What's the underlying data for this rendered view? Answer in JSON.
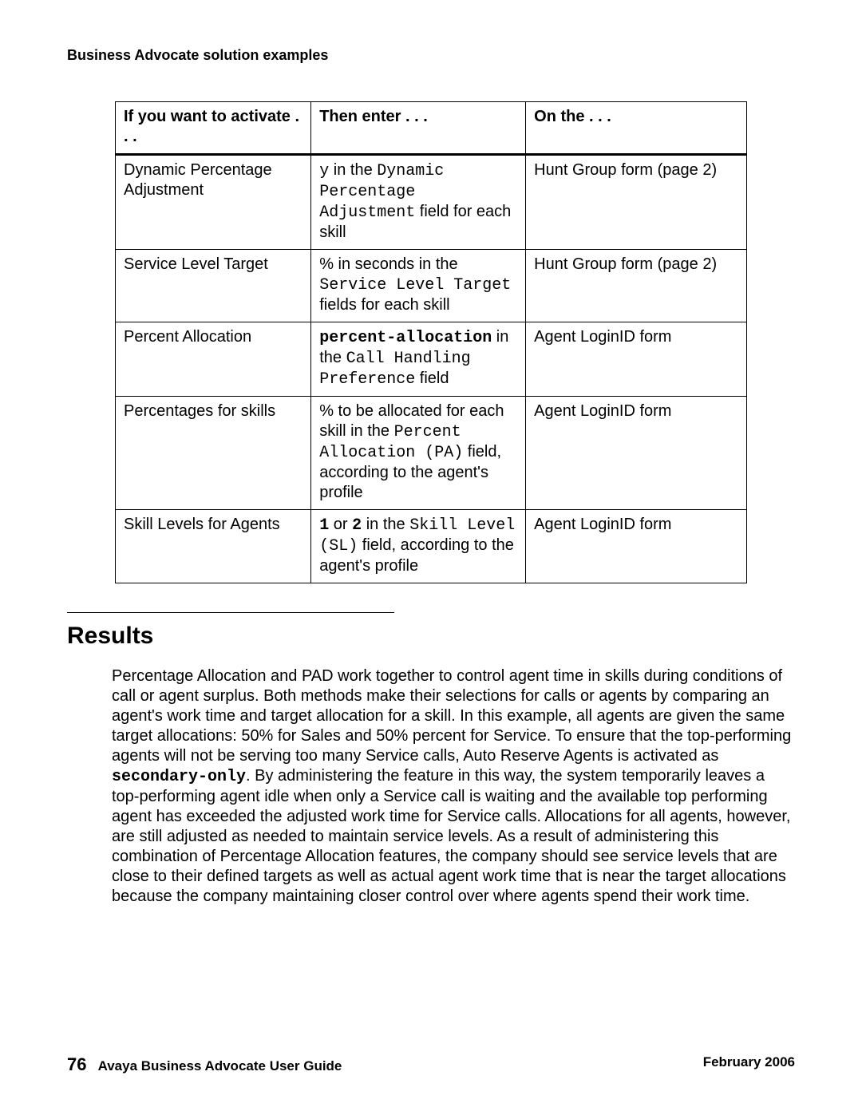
{
  "runningHeader": "Business Advocate solution examples",
  "table": {
    "headers": {
      "col1": "If you want to activate . . .",
      "col2": "Then enter . . .",
      "col3": "On the . . ."
    },
    "rows": {
      "r1": {
        "activate": "Dynamic Percentage Adjustment",
        "enter_pre_code": "",
        "enter_code1": "y",
        "enter_mid1": " in the ",
        "enter_code2": "Dynamic Percentage Adjustment",
        "enter_post": " field for each skill",
        "on": "Hunt Group form (page 2)"
      },
      "r2": {
        "activate": "Service Level Target",
        "enter_pre_code": "% in seconds in the ",
        "enter_code1": "Service Level Target",
        "enter_mid1": "",
        "enter_code2": "",
        "enter_post": " fields for each skill",
        "on": "Hunt Group form (page 2)"
      },
      "r3": {
        "activate": "Percent Allocation",
        "enter_pre_code": "",
        "enter_code1": "percent-allocation",
        "enter_mid1": " in the ",
        "enter_code2": "Call Handling Preference",
        "enter_post": " field",
        "on": "Agent LoginID form"
      },
      "r4": {
        "activate": "Percentages for skills",
        "enter_pre_code": "% to be allocated for each skill in the ",
        "enter_code1": "Percent Allocation (PA)",
        "enter_mid1": "",
        "enter_code2": "",
        "enter_post": " field, according to the agent's profile",
        "on": "Agent LoginID form"
      },
      "r5": {
        "activate": "Skill Levels for Agents",
        "enter_pre_code": "",
        "enter_code1": "1",
        "enter_mid1": " or ",
        "enter_code2": "2",
        "enter_post_code": " in the ",
        "enter_code3": "Skill Level (SL)",
        "enter_post": " field, according to the agent's profile",
        "on": "Agent LoginID form"
      }
    }
  },
  "resultsHeading": "Results",
  "resultsPara": {
    "t1": "Percentage Allocation and PAD work together to control agent time in skills during conditions of call or agent surplus. Both methods make their selections for calls or agents by comparing an agent's work time and target allocation for a skill. In this example, all agents are given the same target allocations: 50% for Sales and 50% percent for Service. To ensure that the top-performing agents will not be serving too many Service calls, Auto Reserve Agents is activated as ",
    "code": "secondary-only",
    "t2": ". By administering the feature in this way, the system temporarily leaves a top-performing agent idle when only a Service call is waiting and the available top performing agent has exceeded the adjusted work time for Service calls. Allocations for all agents, however, are still adjusted as needed to maintain service levels. As a result of administering this combination of Percentage Allocation features, the company should see service levels that are close to their defined targets as well as actual agent work time that is near the target allocations because the company maintaining closer control over where agents spend their work time."
  },
  "footer": {
    "pageNumber": "76",
    "bookTitle": "Avaya Business Advocate User Guide",
    "date": "February 2006"
  }
}
